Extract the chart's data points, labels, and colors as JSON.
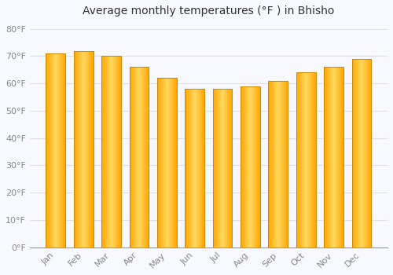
{
  "title": "Average monthly temperatures (°F ) in Bhisho",
  "months": [
    "Jan",
    "Feb",
    "Mar",
    "Apr",
    "May",
    "Jun",
    "Jul",
    "Aug",
    "Sep",
    "Oct",
    "Nov",
    "Dec"
  ],
  "values": [
    71,
    72,
    70,
    66,
    62,
    58,
    58,
    59,
    61,
    64,
    66,
    69
  ],
  "bar_color_center": "#FFD060",
  "bar_color_edge": "#FFA500",
  "bar_border_color": "#CC8800",
  "background_color": "#F8F8FF",
  "plot_bg_color": "#F8F8FF",
  "grid_color": "#DDDDEE",
  "ytick_labels": [
    "0°F",
    "10°F",
    "20°F",
    "30°F",
    "40°F",
    "50°F",
    "60°F",
    "70°F",
    "80°F"
  ],
  "ytick_values": [
    0,
    10,
    20,
    30,
    40,
    50,
    60,
    70,
    80
  ],
  "ylim": [
    0,
    83
  ],
  "title_fontsize": 10,
  "tick_fontsize": 8,
  "bar_width": 0.7
}
